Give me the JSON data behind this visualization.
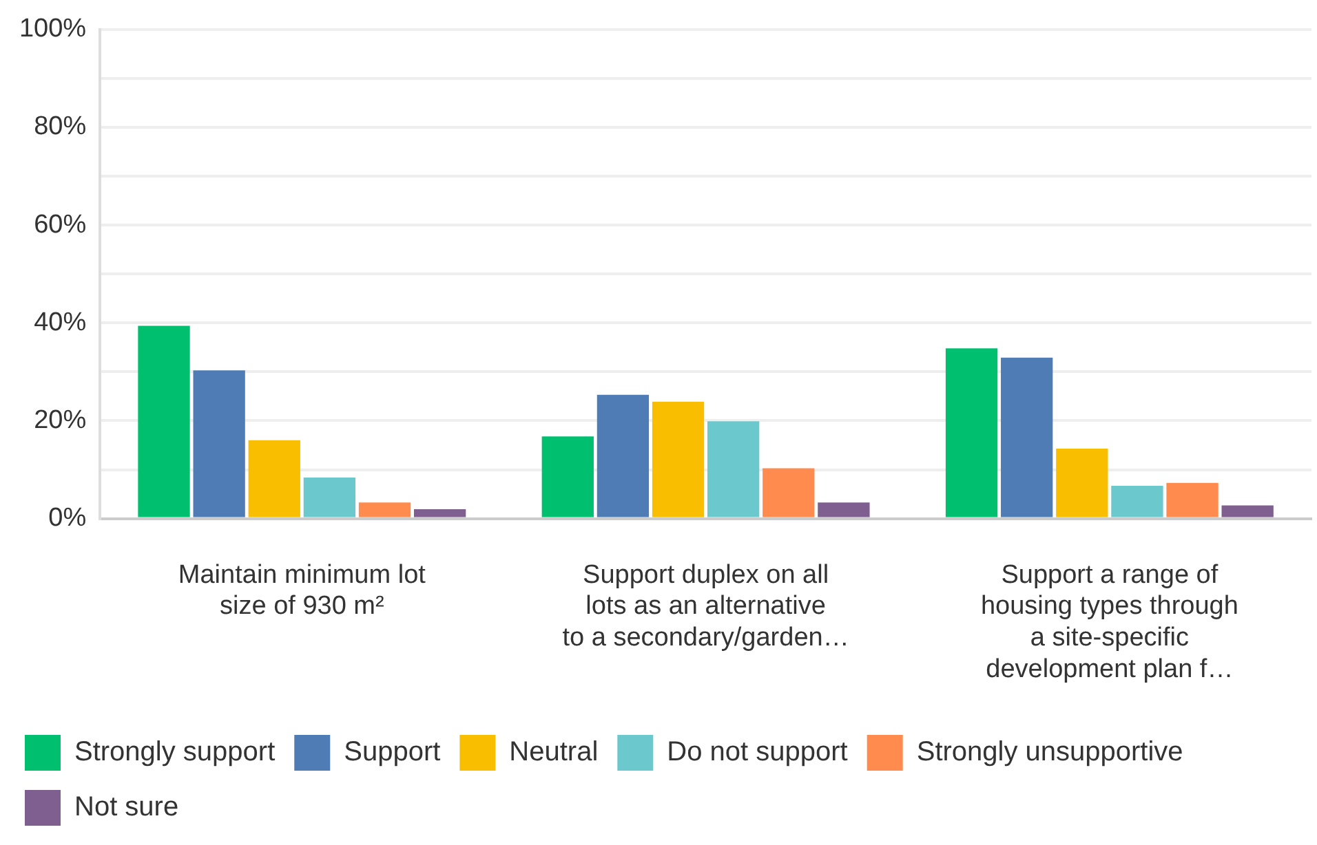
{
  "chart_data": {
    "type": "bar",
    "categories": [
      "Maintain minimum lot size of 930 m²",
      "Support duplex on all lots as an alternative to a secondary/garden…",
      "Support a range of housing types through a site-specific development plan f…"
    ],
    "series": [
      {
        "name": "Strongly support",
        "color": "#00bf6f",
        "values": [
          39.4,
          16.8,
          34.8
        ]
      },
      {
        "name": "Support",
        "color": "#507cb6",
        "values": [
          30.3,
          25.3,
          32.9
        ]
      },
      {
        "name": "Neutral",
        "color": "#f9be00",
        "values": [
          16.0,
          23.9,
          14.3
        ]
      },
      {
        "name": "Do not support",
        "color": "#6bc8cd",
        "values": [
          8.4,
          19.9,
          6.7
        ]
      },
      {
        "name": "Strongly unsupportive",
        "color": "#ff8b4f",
        "values": [
          3.3,
          10.3,
          7.3
        ]
      },
      {
        "name": "Not sure",
        "color": "#7f5f90",
        "values": [
          1.9,
          3.3,
          2.7
        ]
      }
    ],
    "ylim": [
      0,
      100
    ],
    "yticks": [
      {
        "value": 0,
        "label": "0%"
      },
      {
        "value": 10,
        "label": null
      },
      {
        "value": 20,
        "label": "20%"
      },
      {
        "value": 30,
        "label": null
      },
      {
        "value": 40,
        "label": "40%"
      },
      {
        "value": 50,
        "label": null
      },
      {
        "value": 60,
        "label": "60%"
      },
      {
        "value": 70,
        "label": null
      },
      {
        "value": 80,
        "label": "80%"
      },
      {
        "value": 90,
        "label": null
      },
      {
        "value": 100,
        "label": "100%"
      }
    ],
    "grid": "y",
    "legend": "bottom"
  }
}
